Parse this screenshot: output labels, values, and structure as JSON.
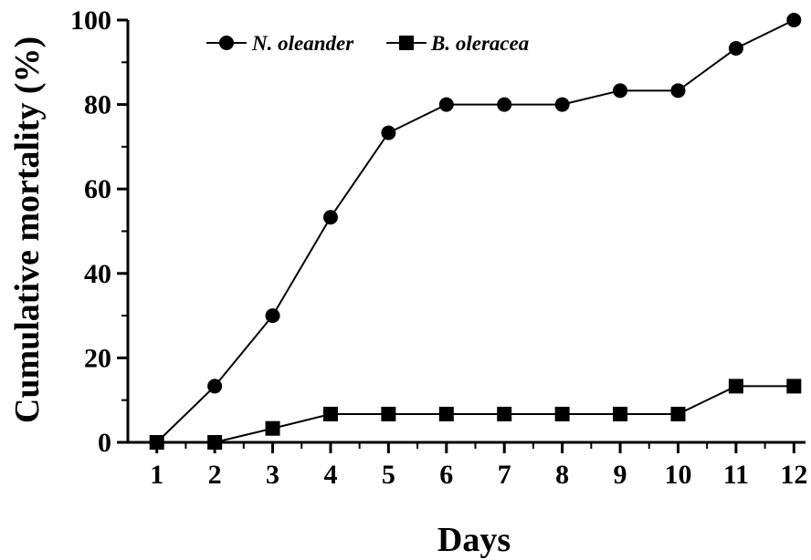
{
  "chart_data": {
    "type": "line",
    "xlabel": "Days",
    "ylabel": "Cumulative mortality (%)",
    "x": [
      1,
      2,
      3,
      4,
      5,
      6,
      7,
      8,
      9,
      10,
      11,
      12
    ],
    "xlim": [
      0.5,
      12.2
    ],
    "ylim": [
      0,
      100
    ],
    "yticks": [
      0,
      20,
      40,
      60,
      80,
      100
    ],
    "grid": false,
    "legend_position": "top-left",
    "series": [
      {
        "name": "N. oleander",
        "marker": "circle",
        "color": "#000000",
        "values": [
          0,
          13.3,
          30,
          53.3,
          73.3,
          80,
          80,
          80,
          83.3,
          83.3,
          93.3,
          100
        ]
      },
      {
        "name": "B. oleracea",
        "marker": "square",
        "color": "#000000",
        "values": [
          0,
          0,
          3.3,
          6.7,
          6.7,
          6.7,
          6.7,
          6.7,
          6.7,
          6.7,
          13.3,
          13.3
        ]
      }
    ]
  }
}
